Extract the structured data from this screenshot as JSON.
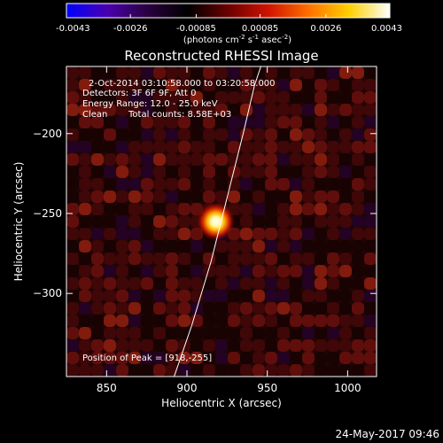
{
  "colorbar": {
    "ticks": [
      {
        "value": -0.0043,
        "label": "-0.0043"
      },
      {
        "value": -0.0026,
        "label": "-0.0026"
      },
      {
        "value": -0.00085,
        "label": "-0.00085"
      },
      {
        "value": 0.00085,
        "label": "0.00085"
      },
      {
        "value": 0.0026,
        "label": "0.0026"
      },
      {
        "value": 0.0043,
        "label": "0.0043"
      }
    ],
    "range": [
      -0.0043,
      0.0043
    ],
    "unit_main": "(photons cm",
    "unit_exp1": "-2",
    "unit_mid1": " s",
    "unit_exp2": "-1",
    "unit_mid2": " asec",
    "unit_exp3": "-2",
    "unit_end": ")"
  },
  "annotations": {
    "time": "2-Oct-2014 03:10:58.000 to 03:20:58.000",
    "detectors": "Detectors: 3F 6F 9F, Att 0",
    "energy": "Energy Range: 12.0 - 25.0 keV",
    "clean": "Clean",
    "counts": "Total counts: 8.58E+03",
    "peak": "Position of Peak = [918,-255]"
  },
  "footer": {
    "date": "24-May-2017 09:46"
  },
  "chart_data": {
    "type": "heatmap",
    "title": "Reconstructed RHESSI Image",
    "xlabel": "Heliocentric X (arcsec)",
    "ylabel": "Heliocentric Y (arcsec)",
    "xlim": [
      825,
      1018
    ],
    "ylim": [
      -352,
      -158
    ],
    "x_ticks": [
      850,
      900,
      950,
      1000
    ],
    "y_ticks": [
      -200,
      -250,
      -300
    ],
    "peak": {
      "x": 918,
      "y": -255,
      "value": 0.0043
    },
    "colormap": [
      "#0000ff",
      "#4a00b0",
      "#2a0040",
      "#000000",
      "#6a0000",
      "#d01400",
      "#ff7000",
      "#ffd000",
      "#ffffff"
    ],
    "limb_curve": [
      [
        892,
        -352
      ],
      [
        903,
        -320
      ],
      [
        915,
        -280
      ],
      [
        925,
        -240
      ],
      [
        935,
        -200
      ],
      [
        942,
        -170
      ],
      [
        946,
        -158
      ]
    ]
  }
}
